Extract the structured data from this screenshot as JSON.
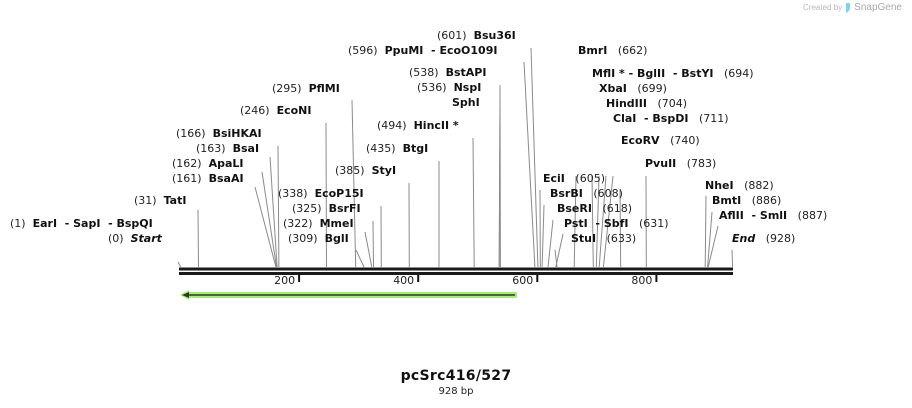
{
  "credit": {
    "prefix": "Created by",
    "brand": "SnapGene"
  },
  "sequence": {
    "name": "pcSrc416/527",
    "length_label": "928 bp",
    "length": 928
  },
  "scale": {
    "ticks": [
      {
        "label": "200",
        "pos": 200
      },
      {
        "label": "400",
        "pos": 400
      },
      {
        "label": "600",
        "pos": 600
      },
      {
        "label": "800",
        "pos": 800
      }
    ]
  },
  "feature": {
    "name": "reverse-orf-arrow",
    "start": 1,
    "end": 570,
    "direction": "reverse",
    "color": "#9fe86e",
    "line_color": "#3a5a2a"
  },
  "colors": {
    "backbone": "#1a1a1a",
    "cutline": "#8a8a8a",
    "tick": "#111111"
  },
  "sites": [
    {
      "pos_label": "(1)",
      "names": "EarI  - SapI  - BspQI",
      "cut": 1,
      "side": "left",
      "italic": false
    },
    {
      "pos_label": "(0)",
      "names": "Start",
      "cut": 0,
      "side": "left",
      "italic": true
    },
    {
      "pos_label": "(31)",
      "names": "TatI",
      "cut": 31,
      "side": "left",
      "italic": false
    },
    {
      "pos_label": "(161)",
      "names": "BsaAI",
      "cut": 161,
      "side": "left",
      "italic": false
    },
    {
      "pos_label": "(162)",
      "names": "ApaLI",
      "cut": 162,
      "side": "left",
      "italic": false
    },
    {
      "pos_label": "(163)",
      "names": "BsaI",
      "cut": 163,
      "side": "left",
      "italic": false
    },
    {
      "pos_label": "(166)",
      "names": "BsiHKAI",
      "cut": 166,
      "side": "left",
      "italic": false
    },
    {
      "pos_label": "(246)",
      "names": "EcoNI",
      "cut": 246,
      "side": "left",
      "italic": false
    },
    {
      "pos_label": "(295)",
      "names": "PflMI",
      "cut": 295,
      "side": "left",
      "italic": false
    },
    {
      "pos_label": "(309)",
      "names": "BglI",
      "cut": 309,
      "side": "left",
      "italic": false
    },
    {
      "pos_label": "(322)",
      "names": "MmeI",
      "cut": 322,
      "side": "left",
      "italic": false
    },
    {
      "pos_label": "(325)",
      "names": "BsrFI",
      "cut": 325,
      "side": "left",
      "italic": false
    },
    {
      "pos_label": "(338)",
      "names": "EcoP15I",
      "cut": 338,
      "side": "left",
      "italic": false
    },
    {
      "pos_label": "(385)",
      "names": "StyI",
      "cut": 385,
      "side": "left",
      "italic": false
    },
    {
      "pos_label": "(435)",
      "names": "BtgI",
      "cut": 435,
      "side": "left",
      "italic": false
    },
    {
      "pos_label": "(494)",
      "names": "HincII *",
      "cut": 494,
      "side": "left",
      "italic": false
    },
    {
      "pos_label": "",
      "names": "SphI",
      "cut": 536,
      "side": "left",
      "italic": false
    },
    {
      "pos_label": "(536)",
      "names": "NspI",
      "cut": 536,
      "side": "left",
      "italic": false
    },
    {
      "pos_label": "(538)",
      "names": "BstAPI",
      "cut": 538,
      "side": "left",
      "italic": false
    },
    {
      "pos_label": "(596)",
      "names": "PpuMI  - EcoO109I",
      "cut": 596,
      "side": "left",
      "italic": false
    },
    {
      "pos_label": "(601)",
      "names": "Bsu36I",
      "cut": 601,
      "side": "left",
      "italic": false
    },
    {
      "pos_label": "(605)",
      "names": "EciI",
      "cut": 605,
      "side": "right",
      "italic": false
    },
    {
      "pos_label": "(608)",
      "names": "BsrBI",
      "cut": 608,
      "side": "right",
      "italic": false
    },
    {
      "pos_label": "(618)",
      "names": "BseRI",
      "cut": 618,
      "side": "right",
      "italic": false
    },
    {
      "pos_label": "(631)",
      "names": "PstI  - SbfI",
      "cut": 631,
      "side": "right",
      "italic": false
    },
    {
      "pos_label": "(633)",
      "names": "StuI",
      "cut": 633,
      "side": "right",
      "italic": false
    },
    {
      "pos_label": "(662)",
      "names": "BmrI",
      "cut": 662,
      "side": "right",
      "italic": false
    },
    {
      "pos_label": "(694)",
      "names": "MflI * - BglII  - BstYI",
      "cut": 694,
      "side": "right",
      "italic": false
    },
    {
      "pos_label": "(699)",
      "names": "XbaI",
      "cut": 699,
      "side": "right",
      "italic": false
    },
    {
      "pos_label": "(704)",
      "names": "HindIII",
      "cut": 704,
      "side": "right",
      "italic": false
    },
    {
      "pos_label": "(711)",
      "names": "ClaI  - BspDI",
      "cut": 711,
      "side": "right",
      "italic": false
    },
    {
      "pos_label": "(740)",
      "names": "EcoRV",
      "cut": 740,
      "side": "right",
      "italic": false
    },
    {
      "pos_label": "(783)",
      "names": "PvuII",
      "cut": 783,
      "side": "right",
      "italic": false
    },
    {
      "pos_label": "(882)",
      "names": "NheI",
      "cut": 882,
      "side": "right",
      "italic": false
    },
    {
      "pos_label": "(886)",
      "names": "BmtI",
      "cut": 886,
      "side": "right",
      "italic": false
    },
    {
      "pos_label": "(887)",
      "names": "AflII  - SmlI",
      "cut": 887,
      "side": "right",
      "italic": false
    },
    {
      "pos_label": "(928)",
      "names": "End",
      "cut": 928,
      "side": "right",
      "italic": true
    }
  ]
}
